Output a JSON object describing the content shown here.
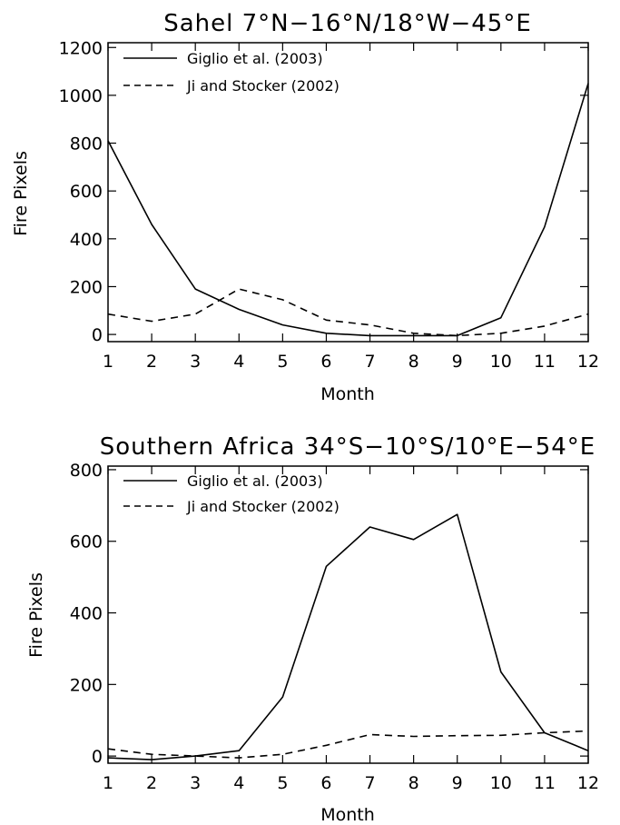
{
  "chart_data": [
    {
      "type": "line",
      "title": "Sahel 7°N−16°N/18°W−45°E",
      "xlabel": "Month",
      "ylabel": "Fire Pixels",
      "xlim": [
        1,
        12
      ],
      "ylim": [
        -30,
        1220
      ],
      "xticks": [
        1,
        2,
        3,
        4,
        5,
        6,
        7,
        8,
        9,
        10,
        11,
        12
      ],
      "yticks": [
        0,
        200,
        400,
        600,
        800,
        1000,
        1200
      ],
      "legend_position": "top-left",
      "x": [
        1,
        2,
        3,
        4,
        5,
        6,
        7,
        8,
        9,
        10,
        11,
        12
      ],
      "series": [
        {
          "name": "Giglio et al. (2003)",
          "style": "solid",
          "values": [
            810,
            460,
            190,
            105,
            40,
            5,
            -5,
            -5,
            -5,
            70,
            450,
            1050
          ]
        },
        {
          "name": "Ji and Stocker (2002)",
          "style": "dashed",
          "values": [
            85,
            55,
            85,
            190,
            145,
            60,
            40,
            5,
            -5,
            5,
            35,
            85
          ]
        }
      ]
    },
    {
      "type": "line",
      "title": "Southern Africa 34°S−10°S/10°E−54°E",
      "xlabel": "Month",
      "ylabel": "Fire Pixels",
      "xlim": [
        1,
        12
      ],
      "ylim": [
        -20,
        810
      ],
      "xticks": [
        1,
        2,
        3,
        4,
        5,
        6,
        7,
        8,
        9,
        10,
        11,
        12
      ],
      "yticks": [
        0,
        200,
        400,
        600,
        800
      ],
      "legend_position": "top-left",
      "x": [
        1,
        2,
        3,
        4,
        5,
        6,
        7,
        8,
        9,
        10,
        11,
        12
      ],
      "series": [
        {
          "name": "Giglio et al. (2003)",
          "style": "solid",
          "values": [
            -5,
            -10,
            0,
            15,
            165,
            530,
            640,
            605,
            675,
            235,
            65,
            15
          ]
        },
        {
          "name": "Ji and Stocker (2002)",
          "style": "dashed",
          "values": [
            20,
            5,
            0,
            -5,
            5,
            30,
            60,
            55,
            57,
            58,
            65,
            70
          ]
        }
      ]
    }
  ]
}
